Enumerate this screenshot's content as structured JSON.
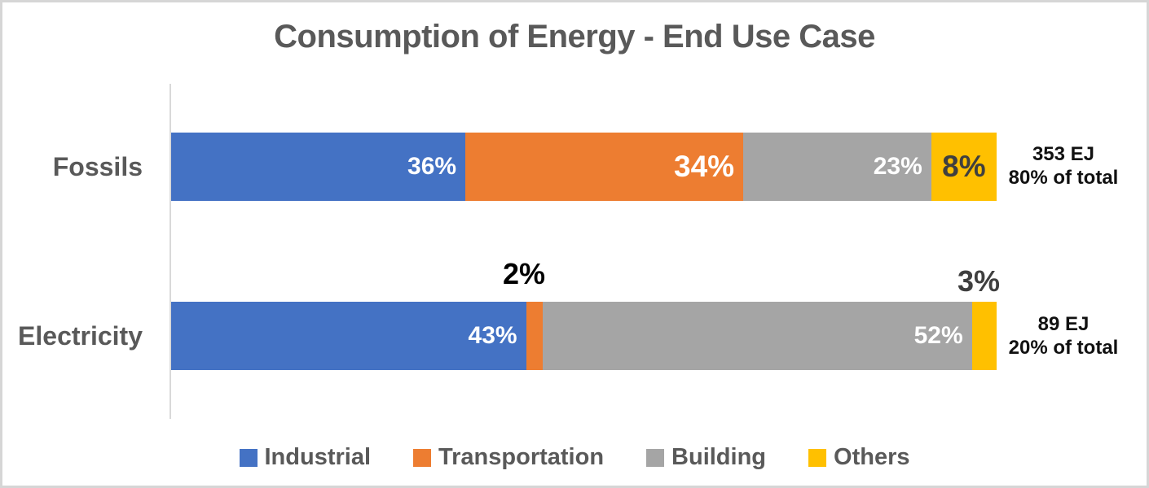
{
  "title": "Consumption of Energy - End Use Case",
  "colors": {
    "industrial": "#4472C4",
    "transportation": "#ED7D31",
    "building": "#A5A5A5",
    "others": "#FFC000",
    "axis_line": "#D9D9D9",
    "heading_text": "#595959"
  },
  "rows": [
    {
      "label": "Fossils",
      "segments": [
        {
          "series": "Industrial",
          "value": 36,
          "label": "36%"
        },
        {
          "series": "Transportation",
          "value": 34,
          "label": "34%"
        },
        {
          "series": "Building",
          "value": 23,
          "label": "23%"
        },
        {
          "series": "Others",
          "value": 8,
          "label": "8%"
        }
      ],
      "annotation": {
        "line1": "353 EJ",
        "line2": "80% of total"
      }
    },
    {
      "label": "Electricity",
      "segments": [
        {
          "series": "Industrial",
          "value": 43,
          "label": "43%"
        },
        {
          "series": "Transportation",
          "value": 2,
          "label": "",
          "outside_label": "2%"
        },
        {
          "series": "Building",
          "value": 52,
          "label": "52%"
        },
        {
          "series": "Others",
          "value": 3,
          "label": "",
          "outside_label": "3%"
        }
      ],
      "annotation": {
        "line1": "89 EJ",
        "line2": "20% of total"
      }
    }
  ],
  "legend": {
    "items": [
      {
        "label": "Industrial"
      },
      {
        "label": "Transportation"
      },
      {
        "label": "Building"
      },
      {
        "label": "Others"
      }
    ]
  },
  "chart_data": {
    "type": "bar",
    "orientation": "horizontal",
    "stacked": true,
    "title": "Consumption of Energy - End Use Case",
    "categories": [
      "Fossils",
      "Electricity"
    ],
    "series": [
      {
        "name": "Industrial",
        "color": "#4472C4",
        "values": [
          36,
          43
        ]
      },
      {
        "name": "Transportation",
        "color": "#ED7D31",
        "values": [
          34,
          2
        ]
      },
      {
        "name": "Building",
        "color": "#A5A5A5",
        "values": [
          23,
          52
        ]
      },
      {
        "name": "Others",
        "color": "#FFC000",
        "values": [
          8,
          3
        ]
      }
    ],
    "value_unit": "%",
    "xlim": [
      0,
      100
    ],
    "grid": false,
    "legend_position": "bottom",
    "category_totals": [
      {
        "category": "Fossils",
        "total": "353 EJ",
        "share_of_total": "80% of total"
      },
      {
        "category": "Electricity",
        "total": "89 EJ",
        "share_of_total": "20% of total"
      }
    ]
  }
}
